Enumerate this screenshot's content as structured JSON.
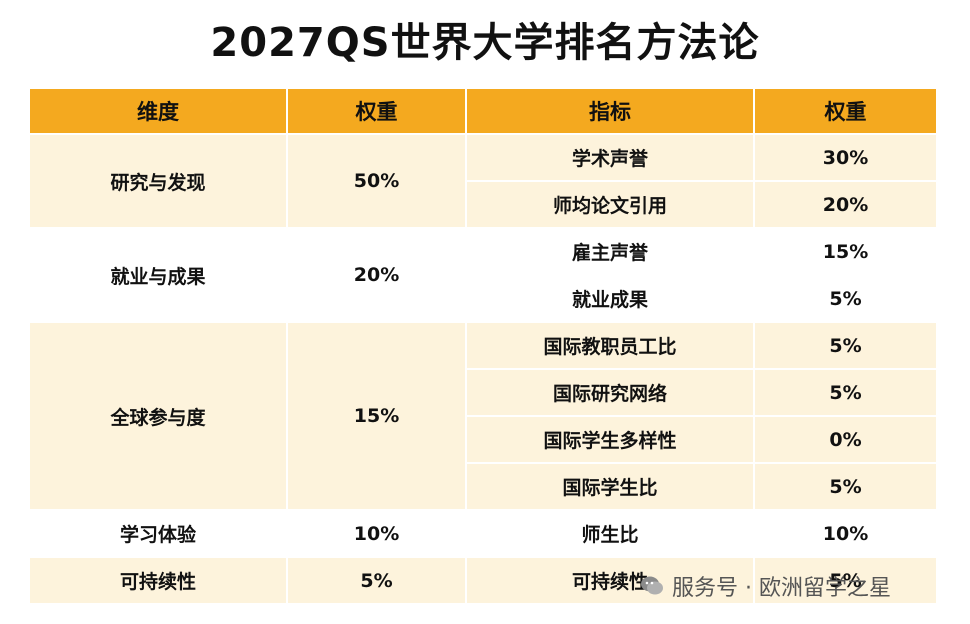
{
  "title": "2027QS世界大学排名方法论",
  "headers": {
    "dimension": "维度",
    "dimension_weight": "权重",
    "indicator": "指标",
    "indicator_weight": "权重"
  },
  "dimensions": [
    {
      "name": "研究与发现",
      "weight": "50%"
    },
    {
      "name": "就业与成果",
      "weight": "20%"
    },
    {
      "name": "全球参与度",
      "weight": "15%"
    },
    {
      "name": "学习体验",
      "weight": "10%"
    },
    {
      "name": "可持续性",
      "weight": "5%"
    }
  ],
  "indicators": [
    {
      "name": "学术声誉",
      "weight": "30%"
    },
    {
      "name": "师均论文引用",
      "weight": "20%"
    },
    {
      "name": "雇主声誉",
      "weight": "15%"
    },
    {
      "name": "就业成果",
      "weight": "5%"
    },
    {
      "name": "国际教职员工比",
      "weight": "5%"
    },
    {
      "name": "国际研究网络",
      "weight": "5%"
    },
    {
      "name": "国际学生多样性",
      "weight": "0%"
    },
    {
      "name": "国际学生比",
      "weight": "5%"
    },
    {
      "name": "师生比",
      "weight": "10%"
    },
    {
      "name": "可持续性",
      "weight": "5%"
    }
  ],
  "watermark": "服务号 · 欧洲留学之星",
  "icons": {
    "watermark": "wechat-bubble-icon"
  },
  "colors": {
    "header": "#f4a91f",
    "band": "#fdf3dc"
  }
}
